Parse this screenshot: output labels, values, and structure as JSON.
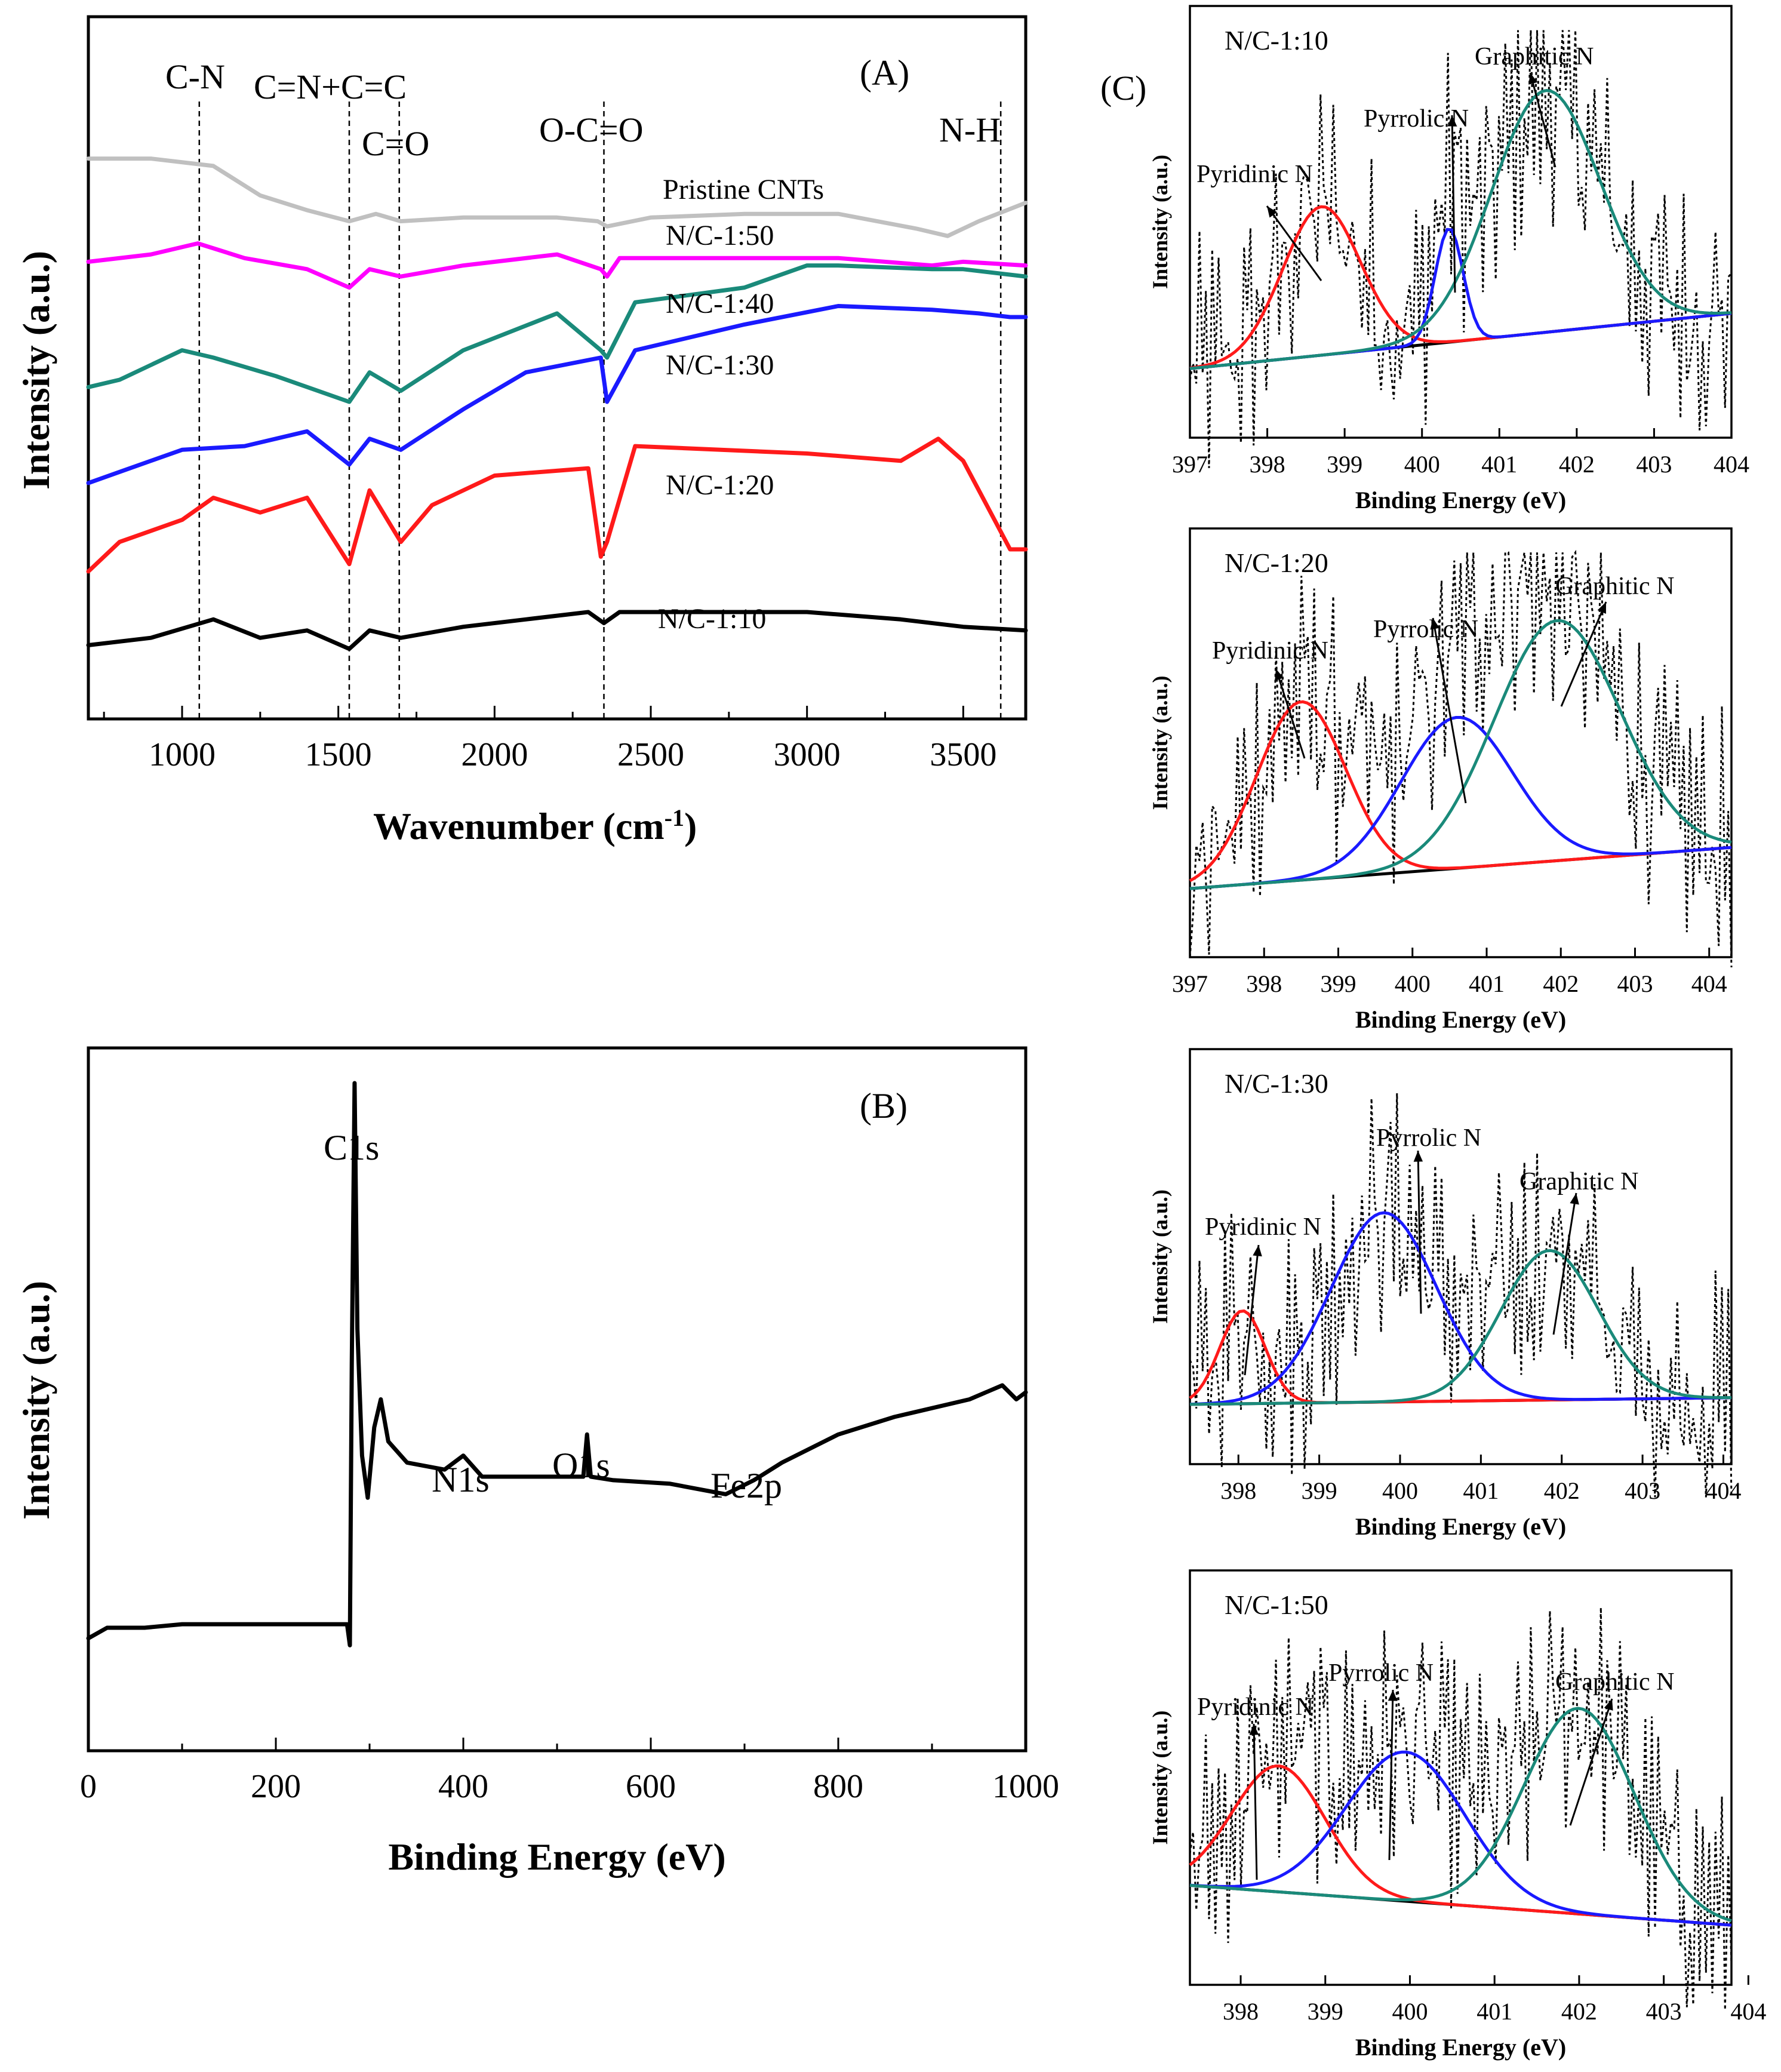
{
  "chart_data": [
    {
      "panel": "(A)",
      "type": "line",
      "title": "",
      "xlabel": "Wavenumber (cm",
      "xlabel_sup": "-1",
      "xlabel_close": ")",
      "ylabel": "Intensity (a.u.)",
      "xlim": [
        700,
        3700
      ],
      "xticks": [
        1000,
        1500,
        2000,
        2500,
        3000,
        3500
      ],
      "annotations": [
        {
          "text": "C-N",
          "x": 1055
        },
        {
          "text": "C=N+C=C",
          "x": 1535
        },
        {
          "text": "C=O",
          "x": 1695
        },
        {
          "text": "O-C=O",
          "x": 2350
        },
        {
          "text": "N-H",
          "x": 3620
        }
      ],
      "reference_lines_x": [
        1055,
        1535,
        1695,
        2350,
        3620
      ],
      "series": [
        {
          "name": "Pristine CNTs",
          "color": "#c0c0c0",
          "offset": 0.76,
          "x": [
            700,
            900,
            1100,
            1250,
            1400,
            1535,
            1620,
            1700,
            1900,
            2200,
            2330,
            2360,
            2500,
            2800,
            3100,
            3350,
            3450,
            3550,
            3700
          ],
          "y": [
            0.76,
            0.76,
            0.75,
            0.71,
            0.69,
            0.675,
            0.685,
            0.675,
            0.68,
            0.68,
            0.675,
            0.668,
            0.68,
            0.685,
            0.685,
            0.665,
            0.655,
            0.675,
            0.7
          ]
        },
        {
          "name": "N/C-1:50",
          "color": "#ff00ff",
          "offset": 0.62,
          "x": [
            700,
            900,
            1050,
            1200,
            1400,
            1535,
            1600,
            1700,
            1900,
            2200,
            2340,
            2360,
            2400,
            2800,
            3100,
            3400,
            3500,
            3700
          ],
          "y": [
            0.62,
            0.63,
            0.645,
            0.625,
            0.61,
            0.585,
            0.61,
            0.6,
            0.615,
            0.63,
            0.61,
            0.6,
            0.625,
            0.625,
            0.625,
            0.615,
            0.62,
            0.615
          ]
        },
        {
          "name": "N/C-1:40",
          "color": "#1a8a7a",
          "offset": 0.45,
          "x": [
            700,
            800,
            1000,
            1100,
            1300,
            1535,
            1600,
            1700,
            1900,
            2200,
            2340,
            2360,
            2450,
            2800,
            3000,
            3100,
            3400,
            3500,
            3700
          ],
          "y": [
            0.45,
            0.46,
            0.5,
            0.49,
            0.465,
            0.43,
            0.47,
            0.445,
            0.5,
            0.55,
            0.5,
            0.49,
            0.565,
            0.585,
            0.615,
            0.615,
            0.61,
            0.61,
            0.6
          ]
        },
        {
          "name": "N/C-1:30",
          "color": "#1a1aff",
          "offset": 0.32,
          "x": [
            700,
            800,
            1000,
            1200,
            1400,
            1535,
            1600,
            1700,
            1900,
            2100,
            2340,
            2360,
            2450,
            2800,
            3100,
            3400,
            3550,
            3650,
            3700
          ],
          "y": [
            0.32,
            0.335,
            0.365,
            0.37,
            0.39,
            0.345,
            0.38,
            0.365,
            0.42,
            0.47,
            0.49,
            0.43,
            0.5,
            0.535,
            0.56,
            0.555,
            0.55,
            0.545,
            0.545
          ]
        },
        {
          "name": "N/C-1:20",
          "color": "#ff1a1a",
          "offset": 0.2,
          "x": [
            700,
            800,
            1000,
            1100,
            1250,
            1400,
            1535,
            1600,
            1700,
            1800,
            2000,
            2300,
            2340,
            2360,
            2450,
            3000,
            3300,
            3420,
            3500,
            3600,
            3650,
            3700
          ],
          "y": [
            0.2,
            0.24,
            0.27,
            0.3,
            0.28,
            0.3,
            0.21,
            0.31,
            0.24,
            0.29,
            0.33,
            0.34,
            0.22,
            0.24,
            0.37,
            0.36,
            0.35,
            0.38,
            0.35,
            0.27,
            0.23,
            0.23
          ]
        },
        {
          "name": "N/C-1:10",
          "color": "#000000",
          "offset": 0.1,
          "x": [
            700,
            900,
            1100,
            1250,
            1400,
            1535,
            1600,
            1700,
            1900,
            2100,
            2300,
            2350,
            2400,
            2600,
            3000,
            3300,
            3500,
            3700
          ],
          "y": [
            0.1,
            0.11,
            0.135,
            0.11,
            0.12,
            0.095,
            0.12,
            0.11,
            0.125,
            0.135,
            0.145,
            0.13,
            0.145,
            0.145,
            0.145,
            0.135,
            0.125,
            0.12
          ]
        }
      ]
    },
    {
      "panel": "(B)",
      "type": "line",
      "title": "",
      "xlabel": "Binding Energy (eV)",
      "ylabel": "Intensity (a.u.)",
      "xlim": [
        0,
        1000
      ],
      "xticks": [
        0,
        200,
        400,
        600,
        800,
        1000
      ],
      "peak_labels": [
        {
          "text": "C1s",
          "x": 284
        },
        {
          "text": "N1s",
          "x": 400
        },
        {
          "text": "O1s",
          "x": 532
        },
        {
          "text": "Fe2p",
          "x": 710
        }
      ],
      "series": [
        {
          "name": "survey",
          "color": "#000000",
          "x": [
            0,
            20,
            60,
            100,
            150,
            200,
            250,
            276,
            279,
            281,
            284,
            287,
            292,
            298,
            305,
            312,
            320,
            340,
            380,
            400,
            420,
            500,
            528,
            532,
            536,
            560,
            620,
            680,
            710,
            740,
            800,
            860,
            940,
            975,
            990,
            1000
          ],
          "y": [
            0.16,
            0.175,
            0.175,
            0.18,
            0.18,
            0.18,
            0.18,
            0.18,
            0.15,
            0.55,
            0.95,
            0.6,
            0.42,
            0.36,
            0.46,
            0.5,
            0.44,
            0.41,
            0.4,
            0.42,
            0.39,
            0.39,
            0.39,
            0.45,
            0.39,
            0.385,
            0.38,
            0.365,
            0.385,
            0.41,
            0.45,
            0.475,
            0.5,
            0.52,
            0.5,
            0.51
          ]
        }
      ]
    },
    {
      "panel": "(C)",
      "type": "line",
      "subplots": [
        {
          "title": "N/C-1:10",
          "xlabel": "Binding Energy (eV)",
          "ylabel": "Intensity (a.u.)",
          "xlim": [
            397,
            404
          ],
          "xticks": [
            397,
            398,
            399,
            400,
            401,
            402,
            403,
            404
          ],
          "components": [
            {
              "name": "Pyridinic N",
              "color": "#ff1a1a",
              "center": 398.7,
              "height": 0.43,
              "sigma": 0.5
            },
            {
              "name": "Pyrrolic N",
              "color": "#1a1aff",
              "center": 400.35,
              "height": 0.33,
              "sigma": 0.18
            },
            {
              "name": "Graphitic N",
              "color": "#1a8a7a",
              "center": 401.6,
              "height": 0.7,
              "sigma": 0.7
            }
          ],
          "baseline": [
            0.2,
            0.36
          ]
        },
        {
          "title": "N/C-1:20",
          "xlabel": "Binding Energy (eV)",
          "ylabel": "Intensity (a.u.)",
          "xlim": [
            397,
            404.3
          ],
          "xticks": [
            397,
            398,
            399,
            400,
            401,
            402,
            403,
            404
          ],
          "components": [
            {
              "name": "Pyridinic N",
              "color": "#ff1a1a",
              "center": 398.5,
              "height": 0.52,
              "sigma": 0.6
            },
            {
              "name": "Pyrrolic N",
              "color": "#1a1aff",
              "center": 400.6,
              "height": 0.44,
              "sigma": 0.75
            },
            {
              "name": "Graphitic N",
              "color": "#1a8a7a",
              "center": 401.95,
              "height": 0.7,
              "sigma": 0.85
            }
          ],
          "baseline": [
            0.2,
            0.32
          ]
        },
        {
          "title": "N/C-1:30",
          "xlabel": "Binding Energy (eV)",
          "ylabel": "Intensity (a.u.)",
          "xlim": [
            397.4,
            404.1
          ],
          "xticks": [
            398,
            399,
            400,
            401,
            402,
            403,
            404
          ],
          "components": [
            {
              "name": "Pyridinic N",
              "color": "#ff1a1a",
              "center": 398.05,
              "height": 0.28,
              "sigma": 0.28
            },
            {
              "name": "Pyrrolic N",
              "color": "#1a1aff",
              "center": 399.8,
              "height": 0.57,
              "sigma": 0.65
            },
            {
              "name": "Graphitic N",
              "color": "#1a8a7a",
              "center": 401.85,
              "height": 0.45,
              "sigma": 0.6
            }
          ],
          "baseline": [
            0.18,
            0.2
          ]
        },
        {
          "title": "N/C-1:50",
          "xlabel": "Binding Energy (eV)",
          "ylabel": "Intensity (a.u.)",
          "xlim": [
            397.4,
            403.8
          ],
          "xticks": [
            398,
            399,
            400,
            401,
            402,
            403,
            404
          ],
          "components": [
            {
              "name": "Pyridinic N",
              "color": "#ff1a1a",
              "center": 398.45,
              "height": 0.38,
              "sigma": 0.55
            },
            {
              "name": "Pyrrolic N",
              "color": "#1a1aff",
              "center": 399.95,
              "height": 0.45,
              "sigma": 0.7
            },
            {
              "name": "Graphitic N",
              "color": "#1a8a7a",
              "center": 402.0,
              "height": 0.62,
              "sigma": 0.65
            }
          ],
          "baseline": [
            0.3,
            0.18
          ]
        }
      ]
    }
  ]
}
